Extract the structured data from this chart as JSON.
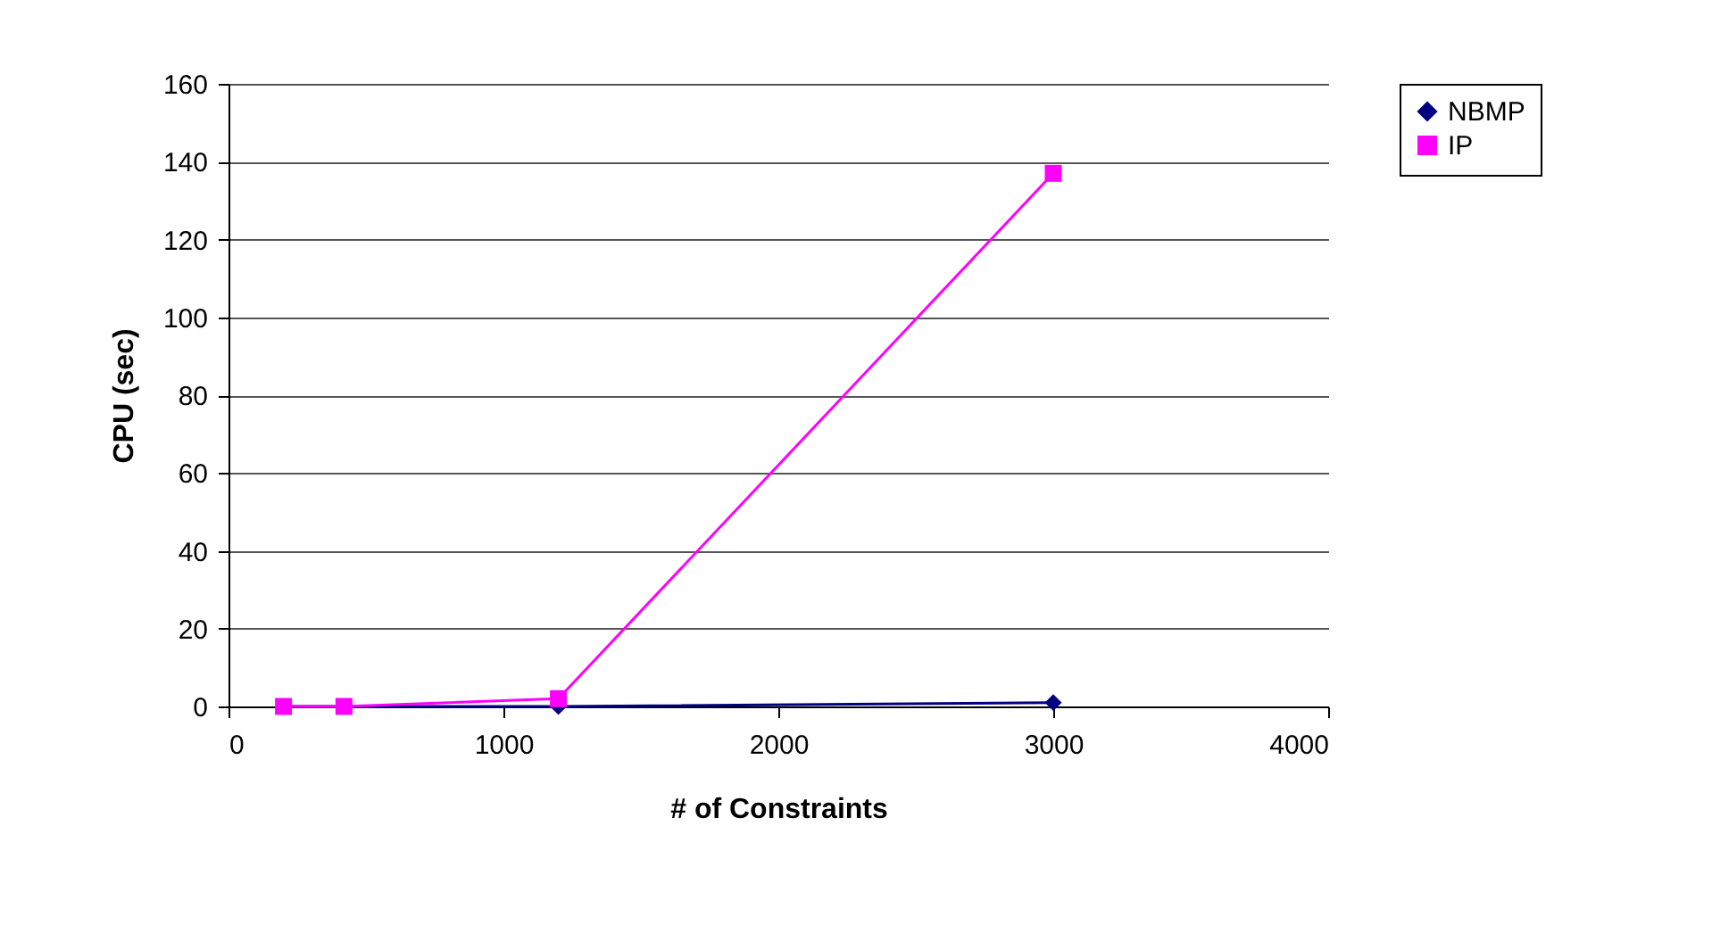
{
  "chart_data": {
    "type": "line",
    "xlabel": "# of Constraints",
    "ylabel": "CPU (sec)",
    "xlim": [
      0,
      4000
    ],
    "xticks": [
      0,
      1000,
      2000,
      3000,
      4000
    ],
    "ylim": [
      0,
      160
    ],
    "yticks": [
      0,
      20,
      40,
      60,
      80,
      100,
      120,
      140,
      160
    ],
    "grid": "y",
    "legend": "right",
    "x": [
      200,
      420,
      1200,
      3000
    ],
    "series": [
      {
        "name": "NBMP",
        "color": "#000080",
        "marker": "diamond",
        "values": [
          0,
          0,
          0,
          1
        ]
      },
      {
        "name": "IP",
        "color": "#ff00ff",
        "marker": "square",
        "values": [
          0,
          0,
          2,
          137
        ]
      }
    ]
  }
}
